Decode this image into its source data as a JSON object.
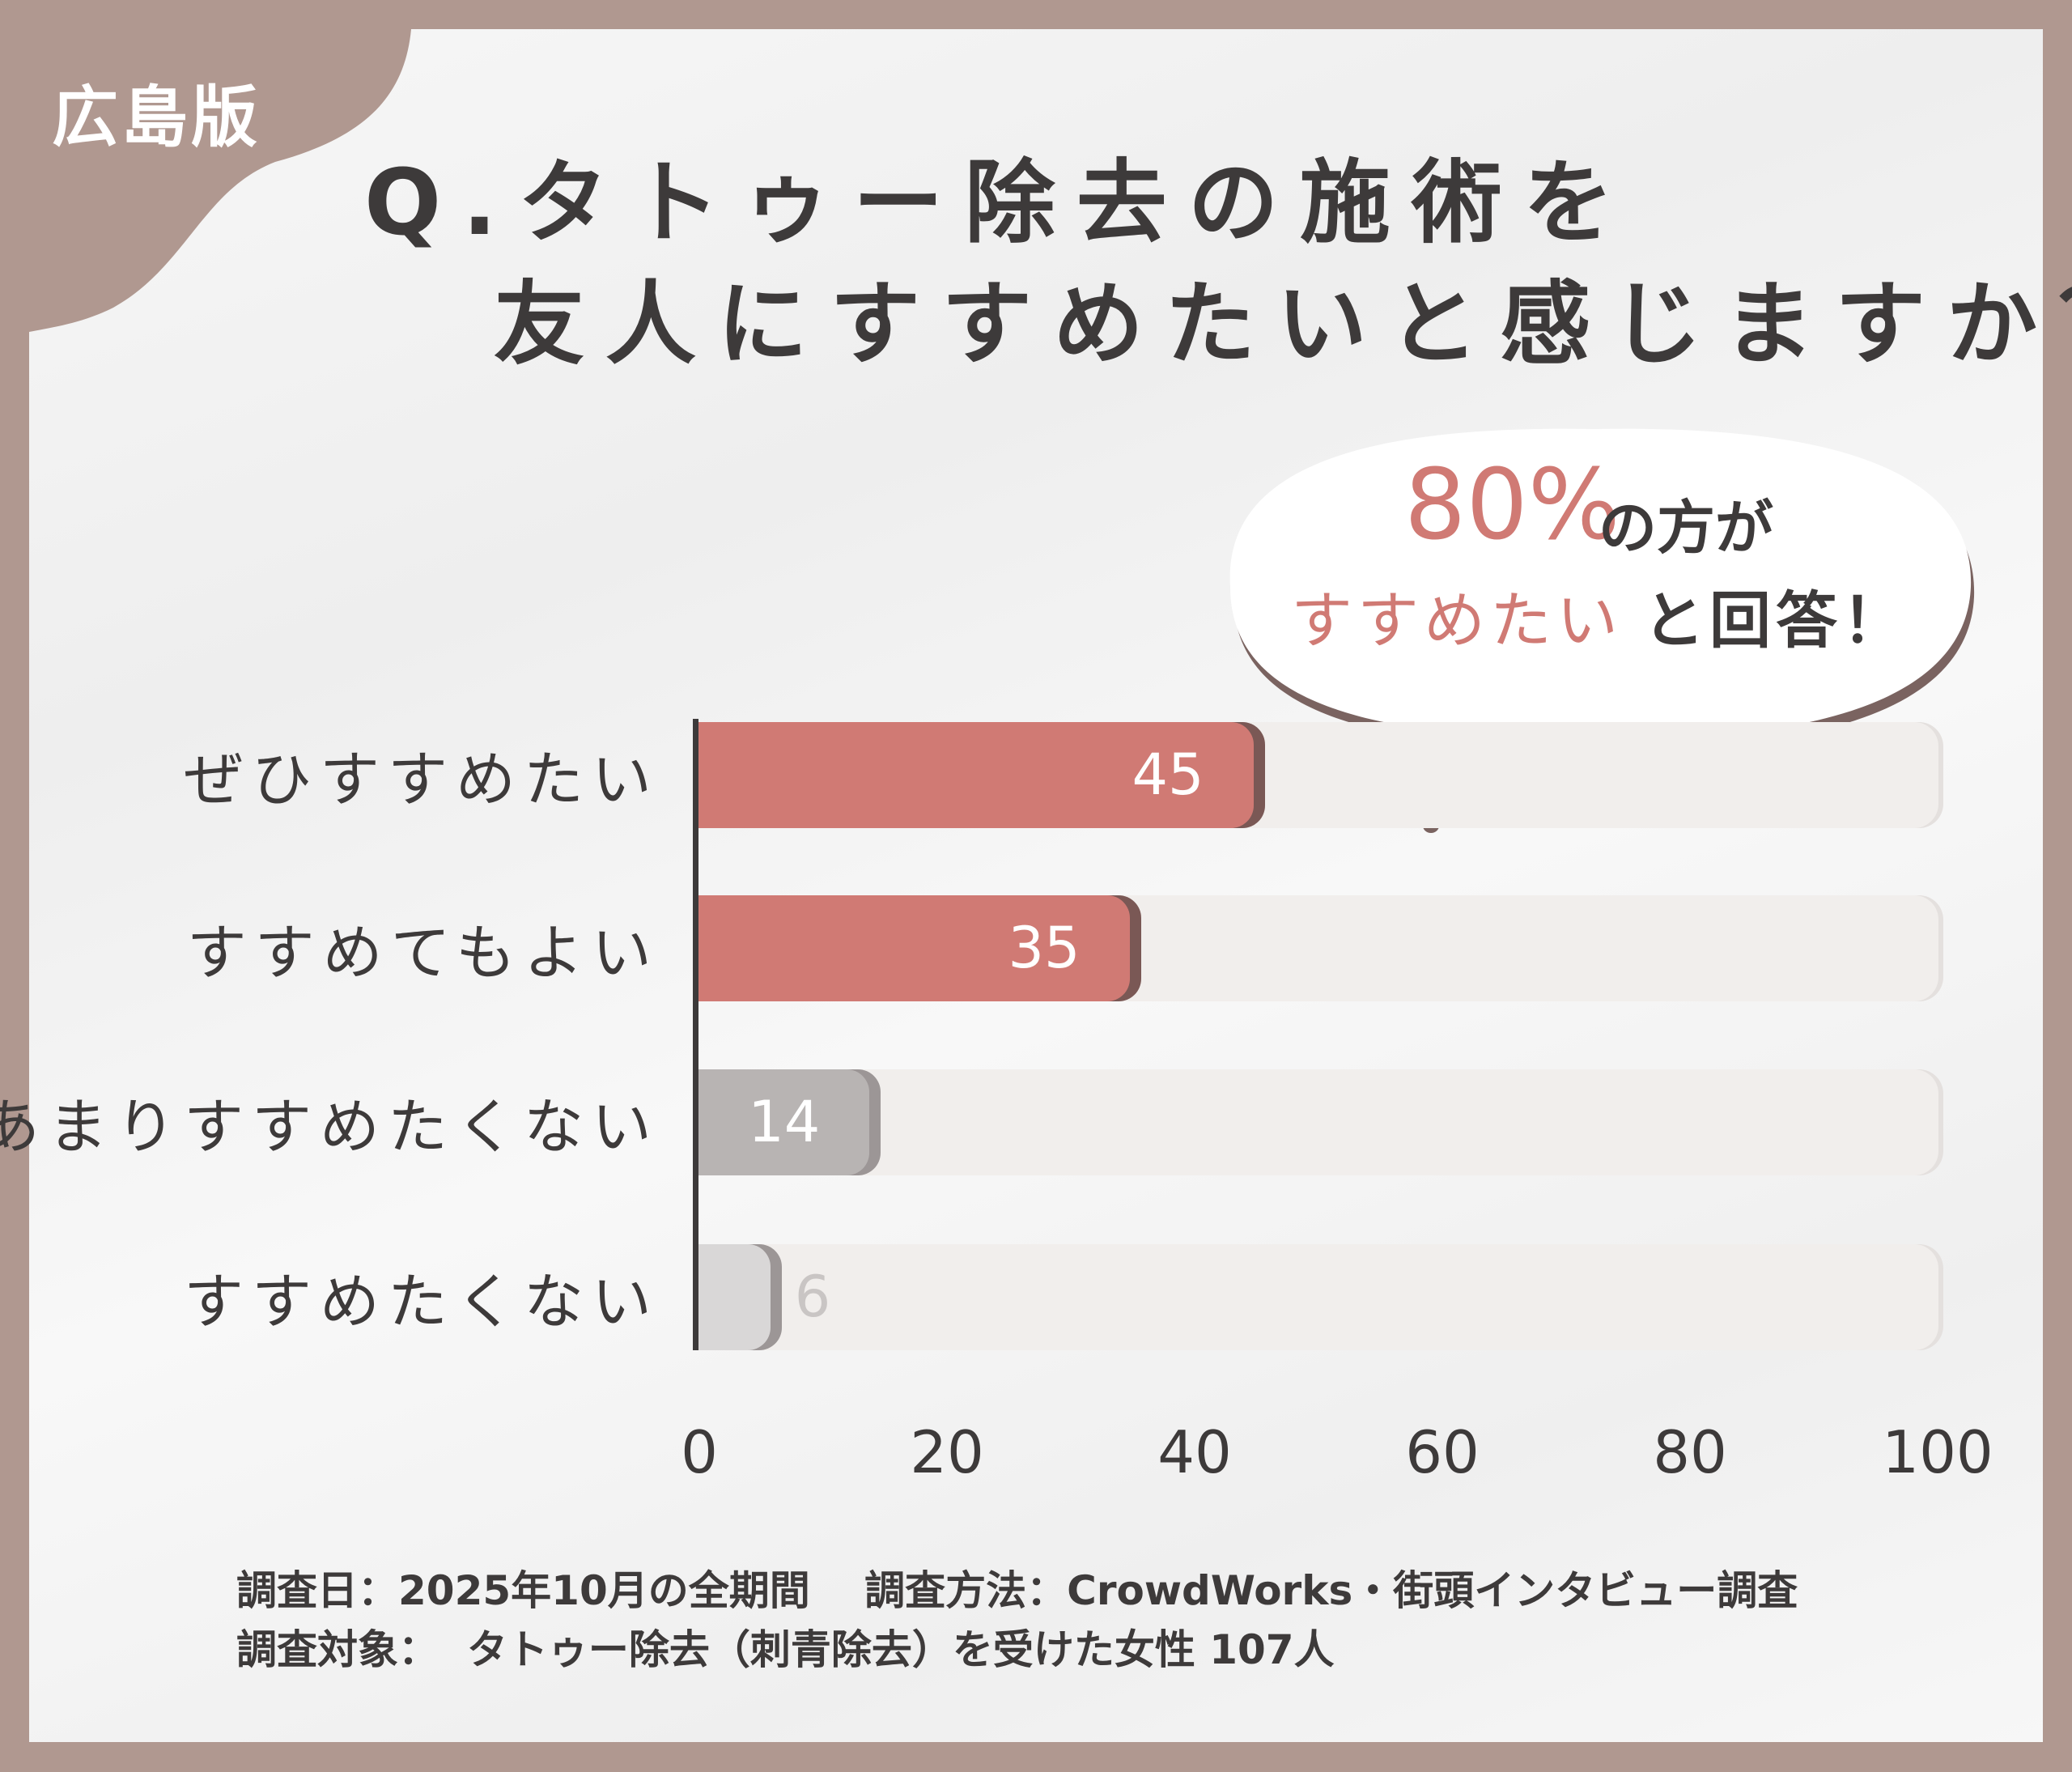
{
  "badge": "広島版",
  "title": {
    "line1": "Q.タトゥー除去の施術を",
    "line2": "友人にすすめたいと感じますか？"
  },
  "callout": {
    "percent": "80%",
    "line1_rest": "の方が",
    "line2_accent": "すすめたい",
    "line2_rest": "と回答！"
  },
  "colors": {
    "border": "#b09890",
    "accent": "#d07a74",
    "gray": "#b8b4b3",
    "light_gray": "#d9d7d7"
  },
  "chart_data": {
    "type": "bar",
    "orientation": "horizontal",
    "categories": [
      "ぜひすすめたい",
      "すすめてもよい",
      "あまりすすめたくない",
      "すすめたくない"
    ],
    "values": [
      45,
      35,
      14,
      6
    ],
    "xlim": [
      0,
      100
    ],
    "xticks": [
      "0",
      "20",
      "40",
      "60",
      "80",
      "100"
    ],
    "bar_colors": [
      "#d07a74",
      "#d07a74",
      "#b8b4b3",
      "#d9d7d7"
    ]
  },
  "footer": {
    "line1": "調査日：2025年10月の全期間　 調査方法：CrowdWorks・街頭インタビュー調査",
    "line2": "調査対象：  タトゥー除去（刺青除去）を受けた女性 107人"
  }
}
